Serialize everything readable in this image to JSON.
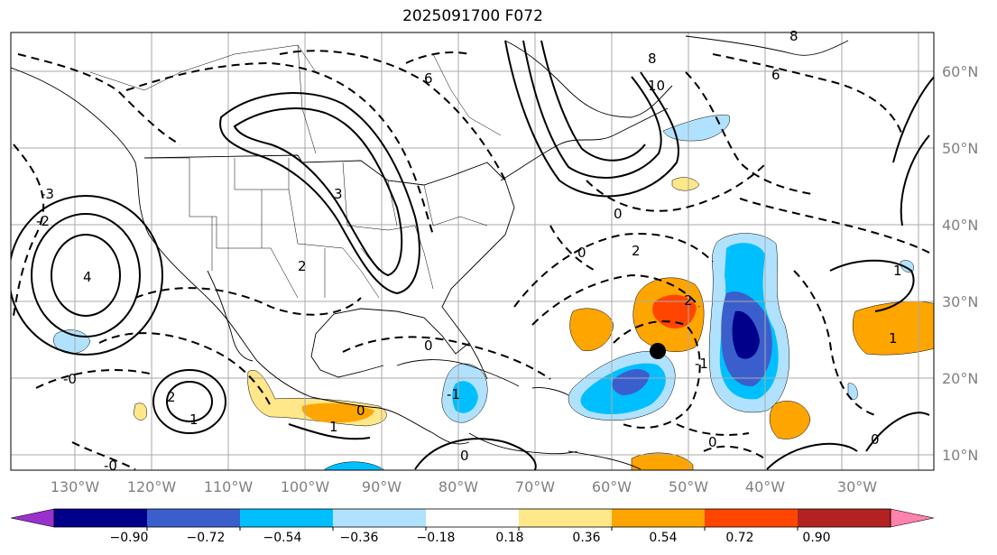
{
  "title": "2025091700 F072",
  "longitude_labels": [
    "130°W",
    "120°W",
    "110°W",
    "100°W",
    "90°W",
    "80°W",
    "70°W",
    "60°W",
    "50°W",
    "40°W",
    "30°W"
  ],
  "latitude_labels": [
    "60°N",
    "50°N",
    "40°N",
    "30°N",
    "20°N",
    "10°N"
  ],
  "colorbar": {
    "tick_labels": [
      "−0.90",
      "−0.72",
      "−0.54",
      "−0.36",
      "−0.18",
      "0.18",
      "0.36",
      "0.54",
      "0.72",
      "0.90"
    ],
    "colors": [
      "#9932cc",
      "#00008b",
      "#3a5fcd",
      "#00bfff",
      "#b0e2ff",
      "#ffffff",
      "#ffe78a",
      "#ffa500",
      "#ff4500",
      "#b22222",
      "#ff82ab"
    ]
  },
  "contour_labels": [
    "0",
    "-1",
    "-2",
    "-3",
    "1",
    "2",
    "3",
    "4",
    "6",
    "8",
    "10",
    "-0"
  ],
  "storm_marker": "black-dot"
}
